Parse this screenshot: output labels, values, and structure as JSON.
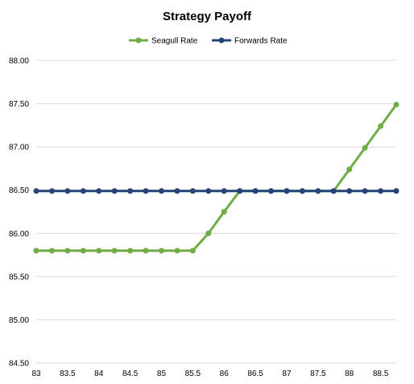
{
  "chart_data": {
    "type": "line",
    "title": "Strategy Payoff",
    "xlabel": "",
    "ylabel": "",
    "x": [
      83,
      83.25,
      83.5,
      83.75,
      84,
      84.25,
      84.5,
      84.75,
      85,
      85.25,
      85.5,
      85.75,
      86,
      86.25,
      86.5,
      86.75,
      87,
      87.25,
      87.5,
      87.75,
      88,
      88.25,
      88.5,
      88.75
    ],
    "x_tick_labels": [
      "83",
      "83.5",
      "84",
      "84.5",
      "85",
      "85.5",
      "86",
      "86.5",
      "87",
      "87.5",
      "88",
      "88.5"
    ],
    "x_tick_values": [
      83,
      83.5,
      84,
      84.5,
      85,
      85.5,
      86,
      86.5,
      87,
      87.5,
      88,
      88.5
    ],
    "xlim": [
      83,
      88.75
    ],
    "ylim": [
      84.5,
      88.0
    ],
    "y_ticks": [
      84.5,
      85.0,
      85.5,
      86.0,
      86.5,
      87.0,
      87.5,
      88.0
    ],
    "y_tick_labels": [
      "84.50",
      "85.00",
      "85.50",
      "86.00",
      "86.50",
      "87.00",
      "87.50",
      "88.00"
    ],
    "grid": true,
    "legend_position": "top-center",
    "series": [
      {
        "name": "Seagull Rate",
        "color": "#70ad47",
        "values": [
          85.8,
          85.8,
          85.8,
          85.8,
          85.8,
          85.8,
          85.8,
          85.8,
          85.8,
          85.8,
          85.8,
          86.0,
          86.25,
          86.49,
          86.49,
          86.49,
          86.49,
          86.49,
          86.49,
          86.49,
          86.74,
          86.99,
          87.24,
          87.49
        ]
      },
      {
        "name": "Forwards Rate",
        "color": "#264478",
        "values": [
          86.49,
          86.49,
          86.49,
          86.49,
          86.49,
          86.49,
          86.49,
          86.49,
          86.49,
          86.49,
          86.49,
          86.49,
          86.49,
          86.49,
          86.49,
          86.49,
          86.49,
          86.49,
          86.49,
          86.49,
          86.49,
          86.49,
          86.49,
          86.49
        ]
      }
    ]
  }
}
